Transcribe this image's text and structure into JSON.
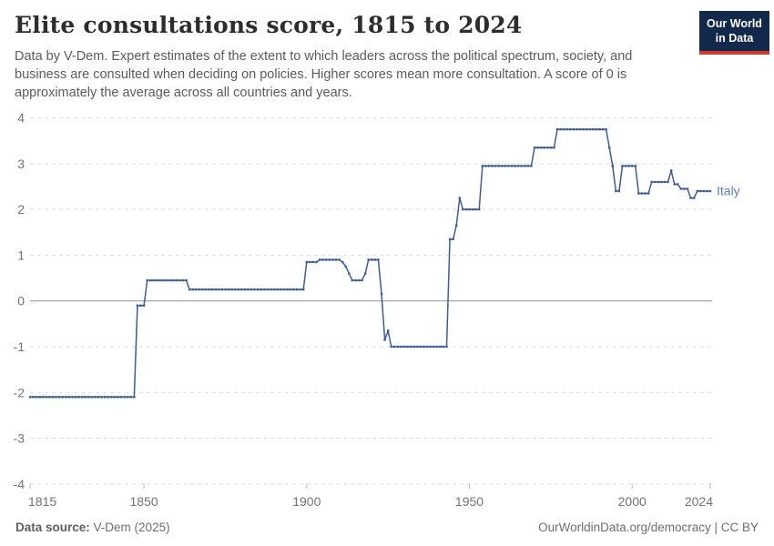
{
  "header": {
    "title": "Elite consultations score, 1815 to 2024",
    "subtitle": "Data by V-Dem. Expert estimates of the extent to which leaders across the political spectrum, society, and business are consulted when deciding on policies. Higher scores mean more consultation. A score of 0 is approximately the average across all countries and years.",
    "logo_line1": "Our World",
    "logo_line2": "in Data"
  },
  "footer": {
    "source_label": "Data source:",
    "source_value": "V-Dem (2025)",
    "license": "OurWorldinData.org/democracy | CC BY"
  },
  "theme": {
    "line_color": "#3d5c99",
    "entity_label_color": "#6380b4",
    "grid_color": "#dcdcdc",
    "zero_line_color": "#8f8f8f",
    "axis_text_color": "#737373",
    "tick_mark_color": "#b3b3b3",
    "logo_bg": "#12294b",
    "logo_accent": "#cf3a31"
  },
  "chart_data": {
    "type": "line",
    "title": "Elite consultations score, 1815 to 2024",
    "xlabel": "",
    "ylabel": "",
    "xlim": [
      1815,
      2024
    ],
    "ylim": [
      -4,
      4
    ],
    "x_ticks": [
      1815,
      1850,
      1900,
      1950,
      2000,
      2024
    ],
    "y_ticks": [
      4,
      3,
      2,
      1,
      0,
      -1,
      -2,
      -3,
      -4
    ],
    "grid": "horizontal-dashed",
    "legend_position": "end-of-line-label",
    "series": [
      {
        "name": "Italy",
        "start_year": 1815,
        "end_year": 2024,
        "values": [
          -2.1,
          -2.1,
          -2.1,
          -2.1,
          -2.1,
          -2.1,
          -2.1,
          -2.1,
          -2.1,
          -2.1,
          -2.1,
          -2.1,
          -2.1,
          -2.1,
          -2.1,
          -2.1,
          -2.1,
          -2.1,
          -2.1,
          -2.1,
          -2.1,
          -2.1,
          -2.1,
          -2.1,
          -2.1,
          -2.1,
          -2.1,
          -2.1,
          -2.1,
          -2.1,
          -2.1,
          -2.1,
          -2.1,
          -0.1,
          -0.1,
          -0.1,
          0.45,
          0.45,
          0.45,
          0.45,
          0.45,
          0.45,
          0.45,
          0.45,
          0.45,
          0.45,
          0.45,
          0.45,
          0.45,
          0.25,
          0.25,
          0.25,
          0.25,
          0.25,
          0.25,
          0.25,
          0.25,
          0.25,
          0.25,
          0.25,
          0.25,
          0.25,
          0.25,
          0.25,
          0.25,
          0.25,
          0.25,
          0.25,
          0.25,
          0.25,
          0.25,
          0.25,
          0.25,
          0.25,
          0.25,
          0.25,
          0.25,
          0.25,
          0.25,
          0.25,
          0.25,
          0.25,
          0.25,
          0.25,
          0.25,
          0.85,
          0.85,
          0.85,
          0.85,
          0.9,
          0.9,
          0.9,
          0.9,
          0.9,
          0.9,
          0.9,
          0.85,
          0.75,
          0.6,
          0.45,
          0.45,
          0.45,
          0.45,
          0.6,
          0.9,
          0.9,
          0.9,
          0.9,
          0.15,
          -0.85,
          -0.65,
          -1,
          -1,
          -1,
          -1,
          -1,
          -1,
          -1,
          -1,
          -1,
          -1,
          -1,
          -1,
          -1,
          -1,
          -1,
          -1,
          -1,
          -1,
          1.35,
          1.35,
          1.65,
          2.25,
          2,
          2,
          2,
          2,
          2,
          2,
          2.95,
          2.95,
          2.95,
          2.95,
          2.95,
          2.95,
          2.95,
          2.95,
          2.95,
          2.95,
          2.95,
          2.95,
          2.95,
          2.95,
          2.95,
          2.95,
          3.35,
          3.35,
          3.35,
          3.35,
          3.35,
          3.35,
          3.35,
          3.75,
          3.75,
          3.75,
          3.75,
          3.75,
          3.75,
          3.75,
          3.75,
          3.75,
          3.75,
          3.75,
          3.75,
          3.75,
          3.75,
          3.75,
          3.75,
          3.35,
          2.95,
          2.4,
          2.4,
          2.95,
          2.95,
          2.95,
          2.95,
          2.95,
          2.35,
          2.35,
          2.35,
          2.35,
          2.6,
          2.6,
          2.6,
          2.6,
          2.6,
          2.6,
          2.85,
          2.55,
          2.55,
          2.45,
          2.45,
          2.45,
          2.25,
          2.25,
          2.4,
          2.4,
          2.4,
          2.4,
          2.4
        ]
      }
    ]
  }
}
